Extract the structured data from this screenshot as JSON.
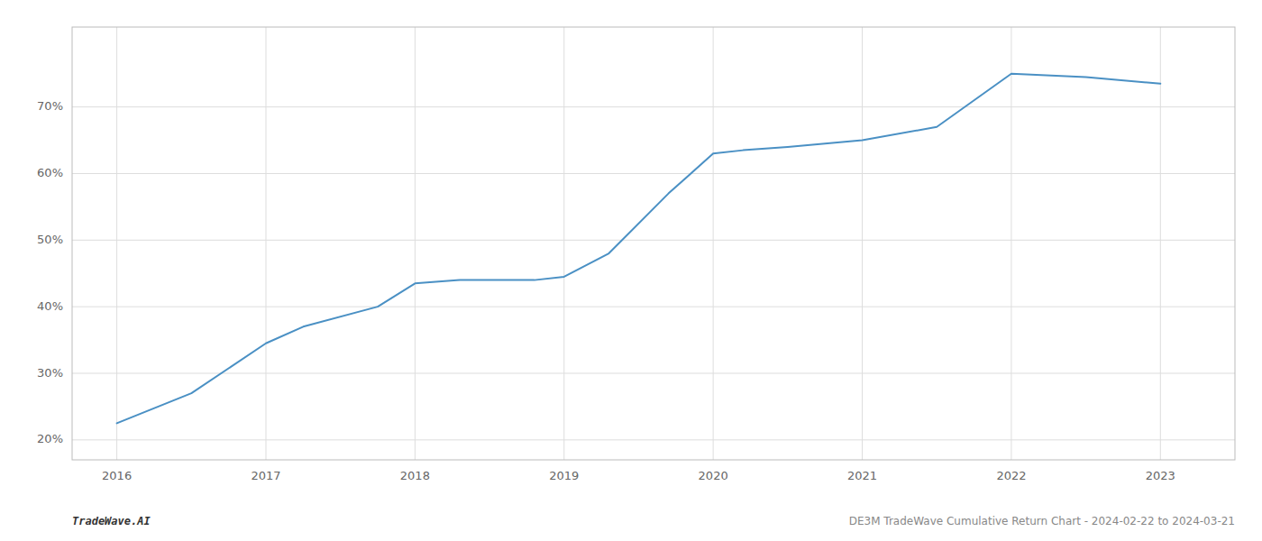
{
  "chart_data": {
    "type": "line",
    "x": [
      2016,
      2016.5,
      2017,
      2017.25,
      2017.75,
      2018,
      2018.3,
      2018.8,
      2019,
      2019.3,
      2019.7,
      2020,
      2020.2,
      2020.5,
      2021,
      2021.5,
      2022,
      2022.5,
      2023
    ],
    "values": [
      22.5,
      27.0,
      34.5,
      37.0,
      40.0,
      43.5,
      44.0,
      44.0,
      44.5,
      48.0,
      57.0,
      63.0,
      63.5,
      64.0,
      65.0,
      67.0,
      75.0,
      74.5,
      73.5
    ],
    "color": "#4a90c4",
    "xlim": [
      2015.7,
      2023.5
    ],
    "ylim": [
      17,
      82
    ],
    "xticks": [
      2016,
      2017,
      2018,
      2019,
      2020,
      2021,
      2022,
      2023
    ],
    "yticks": [
      {
        "value": 20,
        "label": "20%"
      },
      {
        "value": 30,
        "label": "30%"
      },
      {
        "value": 40,
        "label": "40%"
      },
      {
        "value": 50,
        "label": "50%"
      },
      {
        "value": 60,
        "label": "60%"
      },
      {
        "value": 70,
        "label": "70%"
      }
    ],
    "grid": true,
    "annotations": [
      "TradeWave.AI",
      "DE3M TradeWave Cumulative Return Chart - 2024-02-22 to 2024-03-21"
    ]
  }
}
